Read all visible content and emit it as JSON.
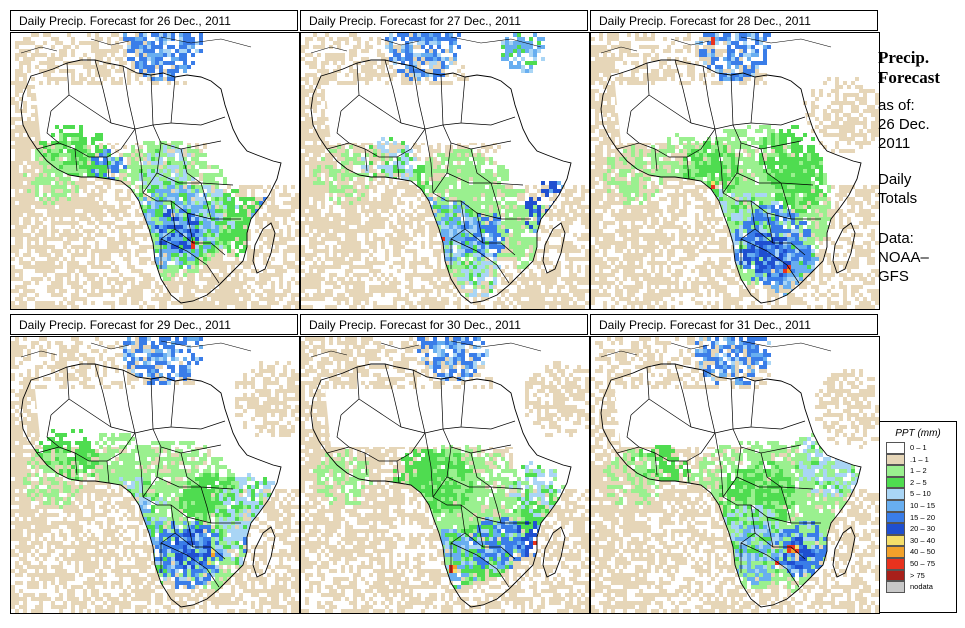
{
  "panels": [
    {
      "title": "Daily Precip. Forecast for  26 Dec., 2011",
      "variant": 0
    },
    {
      "title": "Daily Precip. Forecast for  27 Dec., 2011",
      "variant": 1
    },
    {
      "title": "Daily Precip. Forecast for  28 Dec., 2011",
      "variant": 2
    },
    {
      "title": "Daily Precip. Forecast for  29 Dec., 2011",
      "variant": 3
    },
    {
      "title": "Daily Precip. Forecast for  30 Dec., 2011",
      "variant": 4
    },
    {
      "title": "Daily Precip. Forecast for  31 Dec., 2011",
      "variant": 5
    }
  ],
  "sidebar": {
    "title_line1": "Precip.",
    "title_line2": "Forecast",
    "asof_line1": "as of:",
    "asof_line2": "26 Dec.",
    "asof_line3": "2011",
    "totals_line1": "Daily",
    "totals_line2": "Totals",
    "data_line1": "Data:",
    "data_line2": "NOAA–",
    "data_line3": "GFS"
  },
  "legend": {
    "title": "PPT (mm)",
    "items": [
      {
        "label": "0 – 1",
        "color": "#ffffff"
      },
      {
        "label": ".1 – 1",
        "color": "#e6d6b8"
      },
      {
        "label": "1 – 2",
        "color": "#9af08f"
      },
      {
        "label": "2 – 5",
        "color": "#4fdc50"
      },
      {
        "label": "5 – 10",
        "color": "#a9d5f5"
      },
      {
        "label": "10 – 15",
        "color": "#68aef0"
      },
      {
        "label": "15 – 20",
        "color": "#3a7de8"
      },
      {
        "label": "20 – 30",
        "color": "#1f4fd0"
      },
      {
        "label": "30 – 40",
        "color": "#f5de6a"
      },
      {
        "label": "40 – 50",
        "color": "#f2a12a"
      },
      {
        "label": "50 – 75",
        "color": "#e8321e"
      },
      {
        "label": "> 75",
        "color": "#a8201a"
      },
      {
        "label": "nodata",
        "color": "#c8c8c8"
      }
    ]
  }
}
